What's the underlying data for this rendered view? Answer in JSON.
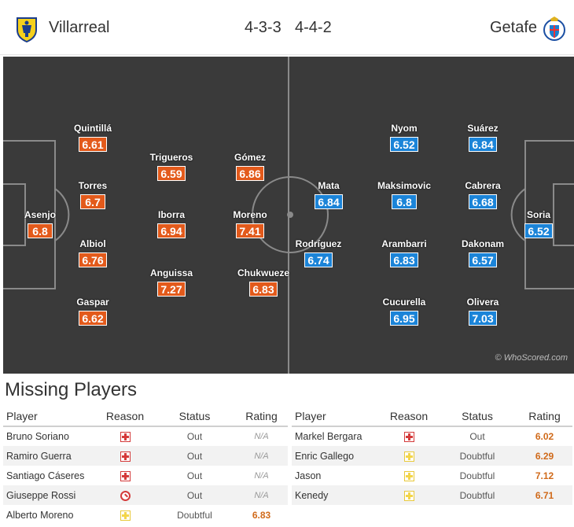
{
  "header": {
    "home_team": "Villarreal",
    "away_team": "Getafe",
    "home_formation": "4-3-3",
    "away_formation": "4-4-2",
    "home_crest_icon": "villarreal-crest",
    "away_crest_icon": "getafe-crest"
  },
  "colors": {
    "pitch": "#3a3a3a",
    "home_rating": "#e35a1b",
    "away_rating": "#1b84d8"
  },
  "pitch": {
    "credit": "© WhoScored.com",
    "home_players": [
      {
        "name": "Asenjo",
        "rating": "6.8"
      },
      {
        "name": "Quintillá",
        "rating": "6.61"
      },
      {
        "name": "Torres",
        "rating": "6.7"
      },
      {
        "name": "Albiol",
        "rating": "6.76"
      },
      {
        "name": "Gaspar",
        "rating": "6.62"
      },
      {
        "name": "Trigueros",
        "rating": "6.59"
      },
      {
        "name": "Iborra",
        "rating": "6.94"
      },
      {
        "name": "Anguissa",
        "rating": "7.27"
      },
      {
        "name": "Gómez",
        "rating": "6.86"
      },
      {
        "name": "Moreno",
        "rating": "7.41"
      },
      {
        "name": "Chukwueze",
        "rating": "6.83"
      }
    ],
    "away_players": [
      {
        "name": "Soria",
        "rating": "6.52"
      },
      {
        "name": "Suárez",
        "rating": "6.84"
      },
      {
        "name": "Cabrera",
        "rating": "6.68"
      },
      {
        "name": "Dakonam",
        "rating": "6.57"
      },
      {
        "name": "Olivera",
        "rating": "7.03"
      },
      {
        "name": "Nyom",
        "rating": "6.52"
      },
      {
        "name": "Maksimovic",
        "rating": "6.8"
      },
      {
        "name": "Arambarri",
        "rating": "6.83"
      },
      {
        "name": "Cucurella",
        "rating": "6.95"
      },
      {
        "name": "Mata",
        "rating": "6.84"
      },
      {
        "name": "Rodríguez",
        "rating": "6.74"
      }
    ]
  },
  "missing": {
    "title": "Missing Players",
    "headers": {
      "player": "Player",
      "reason": "Reason",
      "status": "Status",
      "rating": "Rating"
    },
    "home": [
      {
        "player": "Bruno Soriano",
        "reason_icon": "injury-icon",
        "status": "Out",
        "rating": "N/A"
      },
      {
        "player": "Ramiro Guerra",
        "reason_icon": "injury-icon",
        "status": "Out",
        "rating": "N/A"
      },
      {
        "player": "Santiago Cáseres",
        "reason_icon": "injury-icon",
        "status": "Out",
        "rating": "N/A"
      },
      {
        "player": "Giuseppe Rossi",
        "reason_icon": "suspended-icon",
        "status": "Out",
        "rating": "N/A"
      },
      {
        "player": "Alberto Moreno",
        "reason_icon": "doubtful-icon",
        "status": "Doubtful",
        "rating": "6.83"
      }
    ],
    "away": [
      {
        "player": "Markel Bergara",
        "reason_icon": "injury-icon",
        "status": "Out",
        "rating": "6.02"
      },
      {
        "player": "Enric Gallego",
        "reason_icon": "doubtful-icon",
        "status": "Doubtful",
        "rating": "6.29"
      },
      {
        "player": "Jason",
        "reason_icon": "doubtful-icon",
        "status": "Doubtful",
        "rating": "7.12"
      },
      {
        "player": "Kenedy",
        "reason_icon": "doubtful-icon",
        "status": "Doubtful",
        "rating": "6.71"
      }
    ]
  }
}
